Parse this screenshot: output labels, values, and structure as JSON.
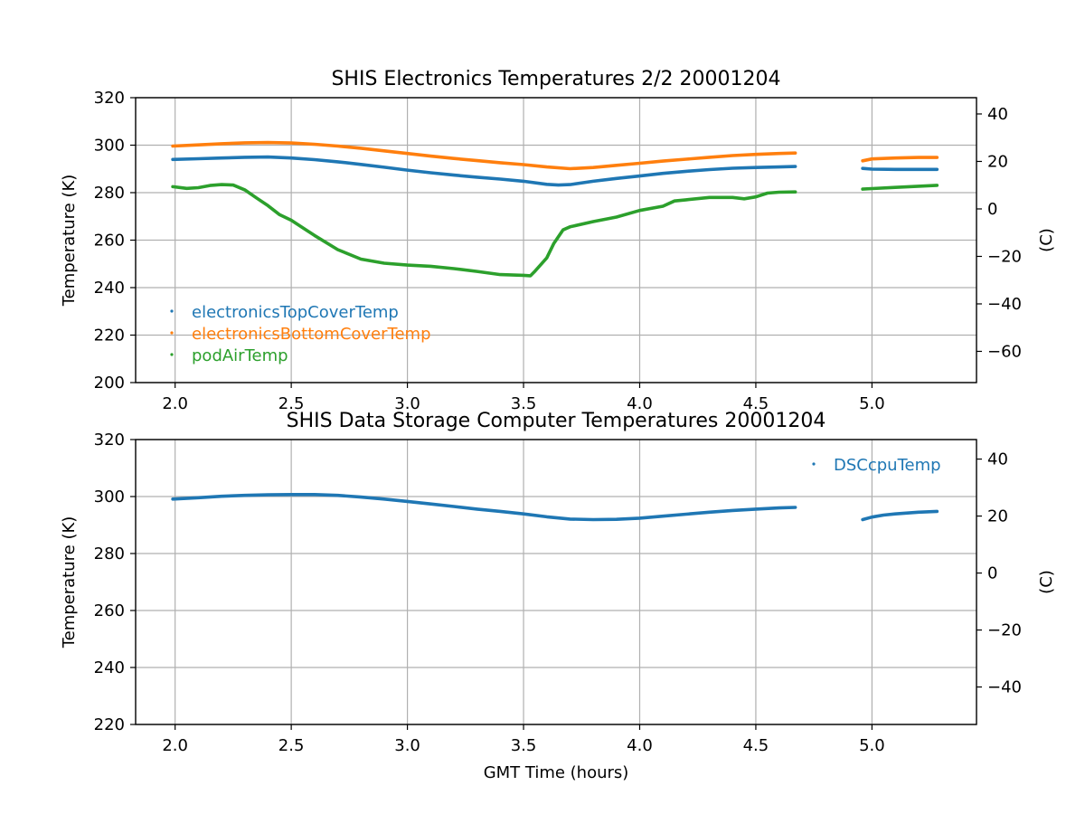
{
  "chart_data": [
    {
      "type": "scatter",
      "title": "SHIS Electronics Temperatures 2/2 20001204",
      "xlabel": "",
      "ylabel": "Temperature (K)",
      "ylabel_right": "(C)",
      "xlim": [
        1.83,
        5.45
      ],
      "ylim": [
        200,
        320
      ],
      "ylim_right": [
        -73.15,
        46.85
      ],
      "xticks": [
        2.0,
        2.5,
        3.0,
        3.5,
        4.0,
        4.5,
        5.0
      ],
      "xtick_labels": [
        "2.0",
        "2.5",
        "3.0",
        "3.5",
        "4.0",
        "4.5",
        "5.0"
      ],
      "yticks": [
        200,
        220,
        240,
        260,
        280,
        300,
        320
      ],
      "ytick_labels": [
        "200",
        "220",
        "240",
        "260",
        "280",
        "300",
        "320"
      ],
      "yticks_right": [
        -60,
        -40,
        -20,
        0,
        20,
        40
      ],
      "ytick_labels_right": [
        "−60",
        "−40",
        "−20",
        "0",
        "20",
        "40"
      ],
      "grid": true,
      "legend_position": "lower-left",
      "series": [
        {
          "name": "electronicsTopCoverTemp",
          "color": "#1f77b4",
          "segments": [
            {
              "x": [
                1.99,
                2.1,
                2.2,
                2.3,
                2.4,
                2.5,
                2.6,
                2.7,
                2.8,
                2.9,
                3.0,
                3.1,
                3.2,
                3.3,
                3.4,
                3.5,
                3.6,
                3.65,
                3.7,
                3.8,
                3.9,
                4.0,
                4.1,
                4.2,
                4.3,
                4.4,
                4.5,
                4.6,
                4.67
              ],
              "y": [
                294,
                294.3,
                294.6,
                294.9,
                295,
                294.6,
                293.9,
                293,
                291.9,
                290.7,
                289.5,
                288.4,
                287.4,
                286.5,
                285.7,
                284.8,
                283.5,
                283.2,
                283.4,
                284.8,
                286,
                287,
                288.1,
                289,
                289.7,
                290.3,
                290.6,
                290.8,
                291
              ]
            },
            {
              "x": [
                4.96,
                5.0,
                5.1,
                5.2,
                5.28
              ],
              "y": [
                290.2,
                289.9,
                289.8,
                289.8,
                289.8
              ]
            }
          ]
        },
        {
          "name": "electronicsBottomCoverTemp",
          "color": "#ff7f0e",
          "segments": [
            {
              "x": [
                1.99,
                2.1,
                2.2,
                2.3,
                2.4,
                2.5,
                2.6,
                2.7,
                2.8,
                2.9,
                3.0,
                3.1,
                3.2,
                3.3,
                3.4,
                3.5,
                3.6,
                3.7,
                3.8,
                3.9,
                4.0,
                4.1,
                4.2,
                4.3,
                4.4,
                4.5,
                4.6,
                4.67
              ],
              "y": [
                299.6,
                300.1,
                300.6,
                301,
                301.1,
                300.9,
                300.4,
                299.6,
                298.7,
                297.6,
                296.5,
                295.4,
                294.4,
                293.5,
                292.6,
                291.8,
                290.8,
                290.1,
                290.6,
                291.5,
                292.4,
                293.3,
                294.1,
                294.9,
                295.6,
                296.1,
                296.5,
                296.7
              ]
            },
            {
              "x": [
                4.96,
                5.0,
                5.1,
                5.2,
                5.28
              ],
              "y": [
                293.4,
                294.2,
                294.6,
                294.8,
                294.8
              ]
            }
          ]
        },
        {
          "name": "podAirTemp",
          "color": "#2ca02c",
          "segments": [
            {
              "x": [
                1.99,
                2.05,
                2.1,
                2.15,
                2.2,
                2.25,
                2.3,
                2.35,
                2.4,
                2.45,
                2.5,
                2.6,
                2.7,
                2.8,
                2.9,
                3.0,
                3.1,
                3.2,
                3.3,
                3.4,
                3.5,
                3.53,
                3.55,
                3.6,
                3.63,
                3.67,
                3.7,
                3.8,
                3.9,
                4.0,
                4.1,
                4.15,
                4.2,
                4.3,
                4.4,
                4.45,
                4.5,
                4.55,
                4.6,
                4.67
              ],
              "y": [
                282.5,
                281.8,
                282.1,
                283,
                283.4,
                283.2,
                281.2,
                277.8,
                274.5,
                270.7,
                268.4,
                262,
                256,
                252,
                250.3,
                249.5,
                249,
                248,
                246.8,
                245.5,
                245.2,
                245,
                247,
                252.5,
                258.5,
                264.3,
                265.6,
                267.8,
                269.7,
                272.5,
                274.3,
                276.5,
                277,
                278,
                278,
                277.4,
                278.2,
                279.8,
                280.2,
                280.3
              ]
            },
            {
              "x": [
                4.96,
                5.0,
                5.1,
                5.2,
                5.28
              ],
              "y": [
                281.5,
                281.7,
                282.2,
                282.7,
                283.1
              ]
            }
          ]
        }
      ]
    },
    {
      "type": "scatter",
      "title": "SHIS Data Storage Computer Temperatures 20001204",
      "xlabel": "GMT Time (hours)",
      "ylabel": "Temperature (K)",
      "ylabel_right": "(C)",
      "xlim": [
        1.83,
        5.45
      ],
      "ylim": [
        220,
        320
      ],
      "ylim_right": [
        -53.15,
        46.85
      ],
      "xticks": [
        2.0,
        2.5,
        3.0,
        3.5,
        4.0,
        4.5,
        5.0
      ],
      "xtick_labels": [
        "2.0",
        "2.5",
        "3.0",
        "3.5",
        "4.0",
        "4.5",
        "5.0"
      ],
      "yticks": [
        220,
        240,
        260,
        280,
        300,
        320
      ],
      "ytick_labels": [
        "220",
        "240",
        "260",
        "280",
        "300",
        "320"
      ],
      "yticks_right": [
        -40,
        -20,
        0,
        20,
        40
      ],
      "ytick_labels_right": [
        "−40",
        "−20",
        "0",
        "20",
        "40"
      ],
      "grid": true,
      "legend_position": "upper-right",
      "series": [
        {
          "name": "DSCcpuTemp",
          "color": "#1f77b4",
          "segments": [
            {
              "x": [
                1.99,
                2.1,
                2.2,
                2.3,
                2.4,
                2.5,
                2.6,
                2.7,
                2.8,
                2.9,
                3.0,
                3.1,
                3.2,
                3.3,
                3.4,
                3.5,
                3.6,
                3.7,
                3.8,
                3.9,
                4.0,
                4.1,
                4.2,
                4.3,
                4.4,
                4.5,
                4.6,
                4.67
              ],
              "y": [
                299.1,
                299.6,
                300.1,
                300.4,
                300.6,
                300.7,
                300.7,
                300.4,
                299.8,
                299.1,
                298.3,
                297.4,
                296.5,
                295.6,
                294.8,
                293.9,
                292.9,
                292.1,
                291.9,
                292,
                292.4,
                293.1,
                293.8,
                294.5,
                295.1,
                295.6,
                296,
                296.2
              ]
            },
            {
              "x": [
                4.96,
                5.0,
                5.05,
                5.1,
                5.2,
                5.28
              ],
              "y": [
                291.9,
                292.8,
                293.5,
                293.9,
                294.5,
                294.8
              ]
            }
          ]
        }
      ]
    }
  ]
}
